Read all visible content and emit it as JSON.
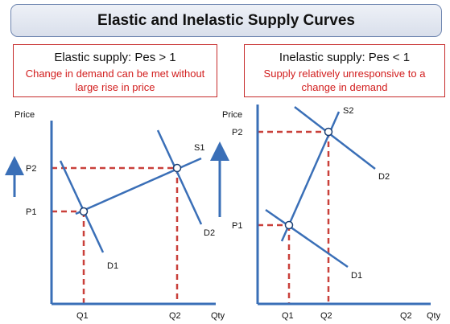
{
  "title": "Elastic and Inelastic Supply Curves",
  "left": {
    "heading": "Elastic supply: Pes > 1",
    "note": "Change in demand can be met without large rise in price",
    "labels": {
      "y_axis": "Price",
      "x_axis": "Qty",
      "p1": "P1",
      "p2": "P2",
      "q1": "Q1",
      "q2": "Q2",
      "supply": "S1",
      "demand1": "D1",
      "demand2": "D2"
    }
  },
  "right": {
    "heading": "Inelastic supply: Pes < 1",
    "note": "Supply relatively unresponsive to a change in demand",
    "labels": {
      "y_axis": "Price",
      "x_axis": "Qty",
      "p1": "P1",
      "p2": "P2",
      "q1": "Q1",
      "q2": "Q2",
      "q2_extra": "Q2",
      "supply": "S2",
      "demand1": "D1",
      "demand2": "D2"
    }
  },
  "colors": {
    "axis": "#3a6fb7",
    "curve": "#3a6fb7",
    "guide": "#c9403a",
    "accent": "#3a6fb7"
  }
}
